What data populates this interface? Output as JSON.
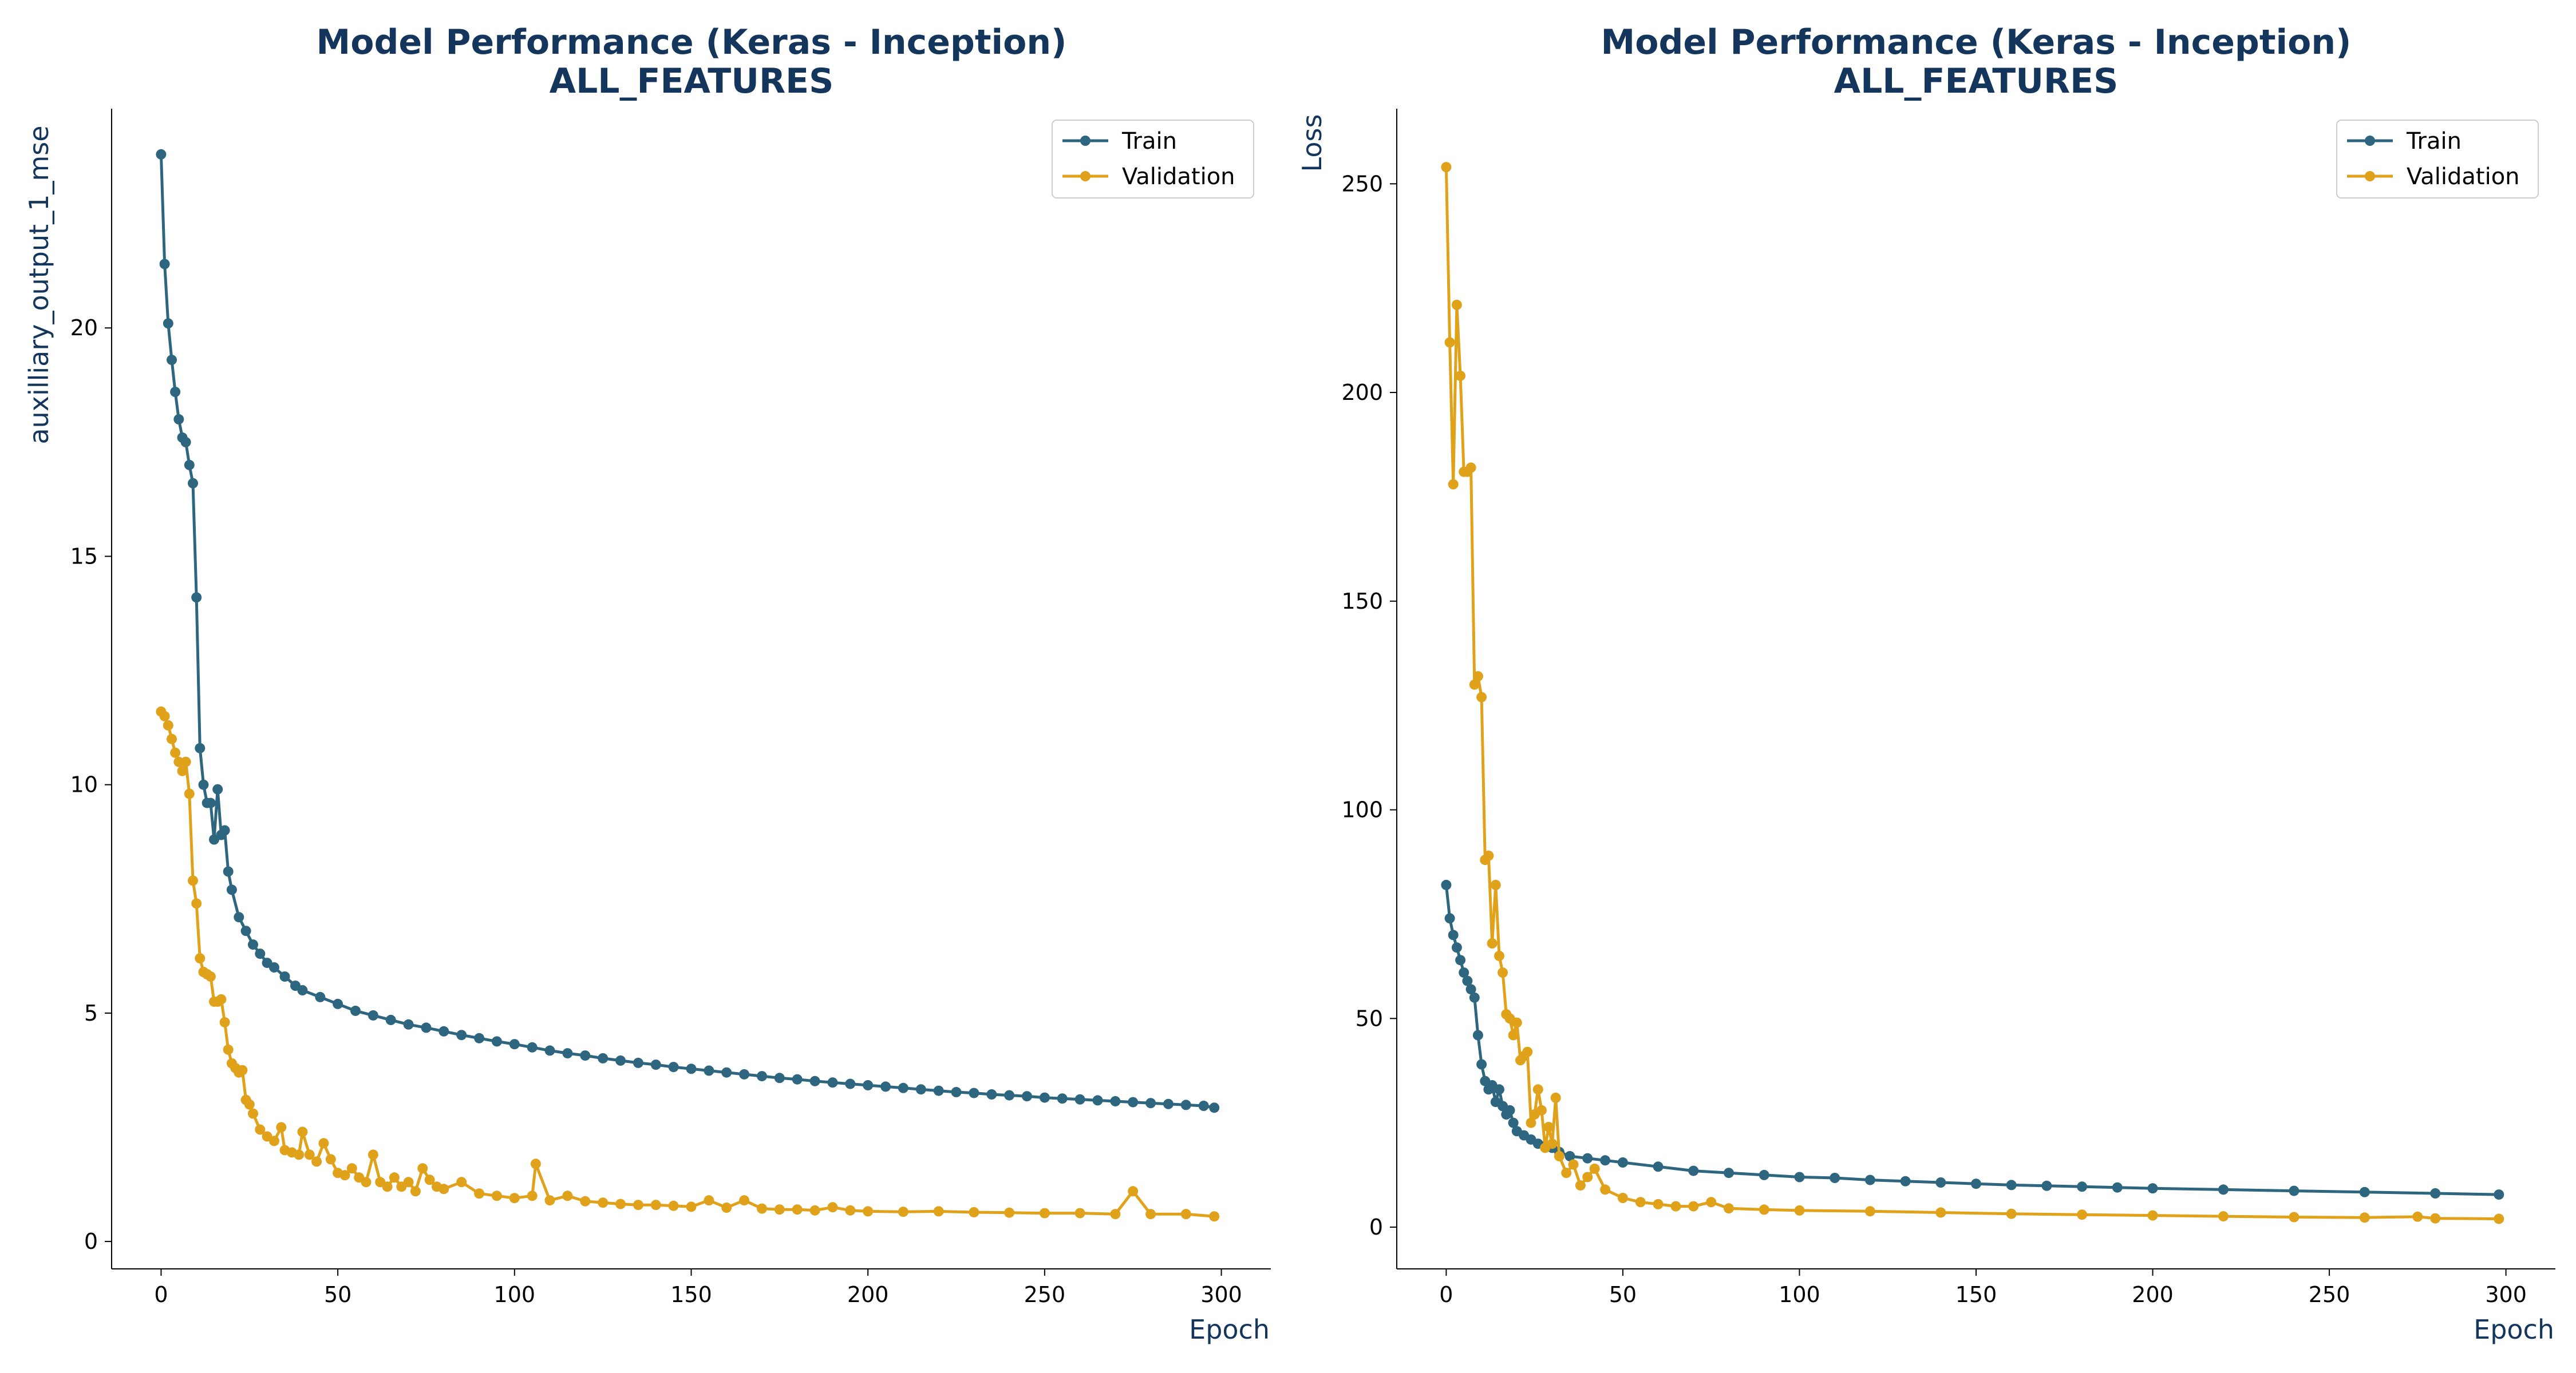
{
  "chart_data": [
    {
      "type": "line",
      "title": "Model Performance (Keras - Inception)",
      "subtitle": "ALL_FEATURES",
      "xlabel": "Epoch",
      "ylabel": "auxilliary_output_1_mse",
      "xlim": [
        -14,
        314
      ],
      "ylim": [
        -0.6,
        24.8
      ],
      "xticks": [
        0,
        50,
        100,
        150,
        200,
        250,
        300
      ],
      "yticks": [
        0,
        5,
        10,
        15,
        20
      ],
      "grid": false,
      "legend_position": "top-right",
      "series": [
        {
          "name": "Train",
          "color": "#2e6680",
          "x": [
            0,
            1,
            2,
            3,
            4,
            5,
            6,
            7,
            8,
            9,
            10,
            11,
            12,
            13,
            14,
            15,
            16,
            17,
            18,
            19,
            20,
            22,
            24,
            26,
            28,
            30,
            32,
            35,
            38,
            40,
            45,
            50,
            55,
            60,
            65,
            70,
            75,
            80,
            85,
            90,
            95,
            100,
            105,
            110,
            115,
            120,
            125,
            130,
            135,
            140,
            145,
            150,
            155,
            160,
            165,
            170,
            175,
            180,
            185,
            190,
            195,
            200,
            205,
            210,
            215,
            220,
            225,
            230,
            235,
            240,
            245,
            250,
            255,
            260,
            265,
            270,
            275,
            280,
            285,
            290,
            295,
            298
          ],
          "values": [
            23.8,
            21.4,
            20.1,
            19.3,
            18.6,
            18.0,
            17.6,
            17.5,
            17.0,
            16.6,
            14.1,
            10.8,
            10.0,
            9.6,
            9.6,
            8.8,
            9.9,
            8.9,
            9.0,
            8.1,
            7.7,
            7.1,
            6.8,
            6.5,
            6.3,
            6.1,
            6.0,
            5.8,
            5.6,
            5.5,
            5.35,
            5.2,
            5.05,
            4.95,
            4.85,
            4.75,
            4.68,
            4.6,
            4.52,
            4.45,
            4.38,
            4.32,
            4.25,
            4.18,
            4.12,
            4.07,
            4.01,
            3.96,
            3.91,
            3.87,
            3.82,
            3.78,
            3.74,
            3.7,
            3.66,
            3.62,
            3.58,
            3.55,
            3.51,
            3.48,
            3.45,
            3.42,
            3.39,
            3.36,
            3.33,
            3.3,
            3.27,
            3.25,
            3.22,
            3.2,
            3.18,
            3.15,
            3.13,
            3.11,
            3.09,
            3.07,
            3.05,
            3.03,
            3.01,
            2.99,
            2.97,
            2.93
          ]
        },
        {
          "name": "Validation",
          "color": "#e0a11b",
          "x": [
            0,
            1,
            2,
            3,
            4,
            5,
            6,
            7,
            8,
            9,
            10,
            11,
            12,
            13,
            14,
            15,
            16,
            17,
            18,
            19,
            20,
            21,
            22,
            23,
            24,
            25,
            26,
            28,
            30,
            32,
            34,
            35,
            37,
            39,
            40,
            42,
            44,
            46,
            48,
            50,
            52,
            54,
            56,
            58,
            60,
            62,
            64,
            66,
            68,
            70,
            72,
            74,
            76,
            78,
            80,
            85,
            90,
            95,
            100,
            105,
            106,
            110,
            115,
            120,
            125,
            130,
            135,
            140,
            145,
            150,
            155,
            160,
            165,
            170,
            175,
            180,
            185,
            190,
            195,
            200,
            210,
            220,
            230,
            240,
            250,
            260,
            270,
            275,
            280,
            290,
            298
          ],
          "values": [
            11.6,
            11.5,
            11.3,
            11.0,
            10.7,
            10.5,
            10.3,
            10.5,
            9.8,
            7.9,
            7.4,
            6.2,
            5.9,
            5.85,
            5.8,
            5.25,
            5.25,
            5.3,
            4.8,
            4.2,
            3.9,
            3.8,
            3.7,
            3.75,
            3.1,
            3.0,
            2.8,
            2.45,
            2.3,
            2.2,
            2.5,
            2.0,
            1.95,
            1.9,
            2.4,
            1.9,
            1.75,
            2.15,
            1.8,
            1.5,
            1.45,
            1.6,
            1.4,
            1.3,
            1.9,
            1.3,
            1.2,
            1.4,
            1.2,
            1.3,
            1.1,
            1.6,
            1.35,
            1.2,
            1.15,
            1.3,
            1.05,
            1.0,
            0.95,
            1.0,
            1.7,
            0.9,
            1.0,
            0.88,
            0.85,
            0.82,
            0.8,
            0.8,
            0.78,
            0.76,
            0.9,
            0.74,
            0.9,
            0.72,
            0.7,
            0.7,
            0.68,
            0.75,
            0.68,
            0.66,
            0.65,
            0.66,
            0.64,
            0.63,
            0.62,
            0.62,
            0.6,
            1.1,
            0.6,
            0.6,
            0.55
          ]
        }
      ]
    },
    {
      "type": "line",
      "title": "Model Performance (Keras - Inception)",
      "subtitle": "ALL_FEATURES",
      "xlabel": "Epoch",
      "ylabel": "Loss",
      "xlim": [
        -14,
        314
      ],
      "ylim": [
        -10,
        268
      ],
      "xticks": [
        0,
        50,
        100,
        150,
        200,
        250,
        300
      ],
      "yticks": [
        0,
        50,
        100,
        150,
        200,
        250
      ],
      "grid": false,
      "legend_position": "top-right",
      "series": [
        {
          "name": "Train",
          "color": "#2e6680",
          "x": [
            0,
            1,
            2,
            3,
            4,
            5,
            6,
            7,
            8,
            9,
            10,
            11,
            12,
            13,
            14,
            15,
            16,
            17,
            18,
            19,
            20,
            22,
            24,
            26,
            28,
            30,
            32,
            35,
            40,
            45,
            50,
            60,
            70,
            80,
            90,
            100,
            110,
            120,
            130,
            140,
            150,
            160,
            170,
            180,
            190,
            200,
            220,
            240,
            260,
            280,
            298
          ],
          "values": [
            82,
            74,
            70,
            67,
            64,
            61,
            59,
            57,
            55,
            46,
            39,
            35,
            33,
            34,
            30,
            33,
            29,
            27,
            28,
            25,
            23,
            22,
            21,
            20,
            19.5,
            19,
            18,
            17,
            16.5,
            16,
            15.5,
            14.5,
            13.5,
            13,
            12.5,
            12,
            11.8,
            11.3,
            11,
            10.7,
            10.4,
            10.1,
            9.9,
            9.7,
            9.5,
            9.3,
            9,
            8.7,
            8.4,
            8.1,
            7.8
          ]
        },
        {
          "name": "Validation",
          "color": "#e0a11b",
          "x": [
            0,
            1,
            2,
            3,
            4,
            5,
            6,
            7,
            8,
            9,
            10,
            11,
            12,
            13,
            14,
            15,
            16,
            17,
            18,
            19,
            20,
            21,
            22,
            23,
            24,
            25,
            26,
            27,
            28,
            29,
            30,
            31,
            32,
            34,
            36,
            38,
            40,
            42,
            45,
            50,
            55,
            60,
            65,
            70,
            75,
            80,
            90,
            100,
            120,
            140,
            160,
            180,
            200,
            220,
            240,
            260,
            275,
            280,
            298
          ],
          "values": [
            254,
            212,
            178,
            221,
            204,
            181,
            181,
            182,
            130,
            132,
            127,
            88,
            89,
            68,
            82,
            65,
            61,
            51,
            50,
            46,
            49,
            40,
            41,
            42,
            25,
            27,
            33,
            28,
            19,
            24,
            20,
            31,
            17,
            13,
            15,
            10,
            12,
            14,
            9,
            7,
            6,
            5.5,
            5,
            5,
            6,
            4.5,
            4.2,
            4,
            3.8,
            3.5,
            3.2,
            3,
            2.8,
            2.6,
            2.4,
            2.3,
            2.5,
            2.1,
            2
          ]
        }
      ]
    }
  ]
}
